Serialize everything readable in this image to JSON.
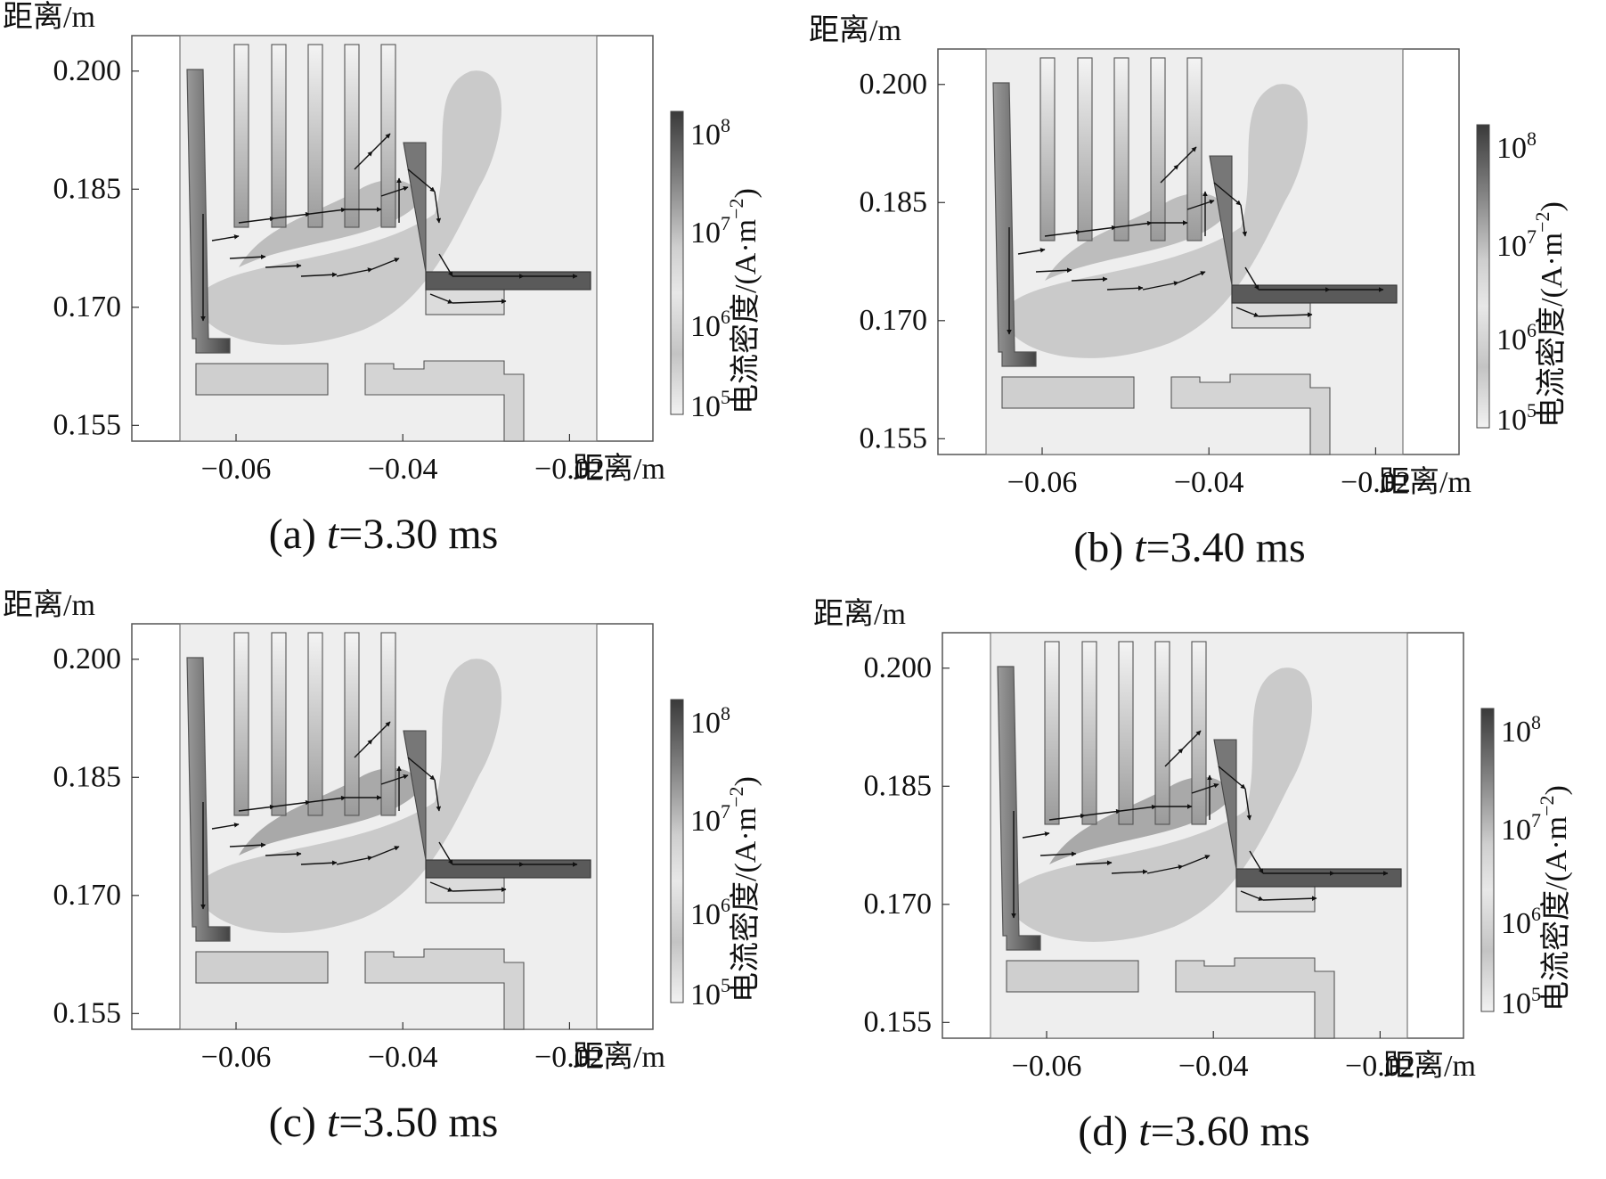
{
  "panels": [
    {
      "label": "(a)",
      "time_var": "t",
      "time_value": "=3.30 ms"
    },
    {
      "label": "(b)",
      "time_var": "t",
      "time_value": "=3.40 ms"
    },
    {
      "label": "(c)",
      "time_var": "t",
      "time_value": "=3.50 ms"
    },
    {
      "label": "(d)",
      "time_var": "t",
      "time_value": "=3.60 ms"
    }
  ],
  "axes": {
    "y_label": "距离/m",
    "x_label": "距离/m",
    "y_ticks": [
      "0.200",
      "0.185",
      "0.170",
      "0.155"
    ],
    "x_ticks": [
      "−0.06",
      "−0.04",
      "−0.02"
    ],
    "colorbar_label": "电流密度/(A·m",
    "colorbar_exp": "−2",
    "colorbar_close": ")",
    "colorbar_ticks": [
      {
        "base": "10",
        "exp": "8"
      },
      {
        "base": "10",
        "exp": "7"
      },
      {
        "base": "10",
        "exp": "6"
      },
      {
        "base": "10",
        "exp": "5"
      }
    ]
  },
  "chart_data": [
    {
      "type": "heatmap",
      "title": "(a) t=3.30 ms",
      "xlabel": "距离/m",
      "ylabel": "距离/m",
      "xlim": [
        -0.0725,
        -0.01
      ],
      "ylim": [
        0.153,
        0.2045
      ],
      "colorbar": "log",
      "colorbar_range": [
        "1e5",
        "1e8"
      ]
    },
    {
      "type": "heatmap",
      "title": "(b) t=3.40 ms",
      "xlabel": "距离/m",
      "ylabel": "距离/m",
      "xlim": [
        -0.0725,
        -0.01
      ],
      "ylim": [
        0.153,
        0.2045
      ],
      "colorbar": "log",
      "colorbar_range": [
        "1e5",
        "1e8"
      ]
    },
    {
      "type": "heatmap",
      "title": "(c) t=3.50 ms",
      "xlabel": "距离/m",
      "ylabel": "距离/m",
      "xlim": [
        -0.0725,
        -0.01
      ],
      "ylim": [
        0.153,
        0.2045
      ],
      "colorbar": "log",
      "colorbar_range": [
        "1e5",
        "1e8"
      ]
    },
    {
      "type": "heatmap",
      "title": "(d) t=3.60 ms",
      "xlabel": "距离/m",
      "ylabel": "距离/m",
      "xlim": [
        -0.0725,
        -0.01
      ],
      "ylim": [
        0.153,
        0.2045
      ],
      "colorbar": "log",
      "colorbar_range": [
        "1e5",
        "1e8"
      ]
    }
  ]
}
